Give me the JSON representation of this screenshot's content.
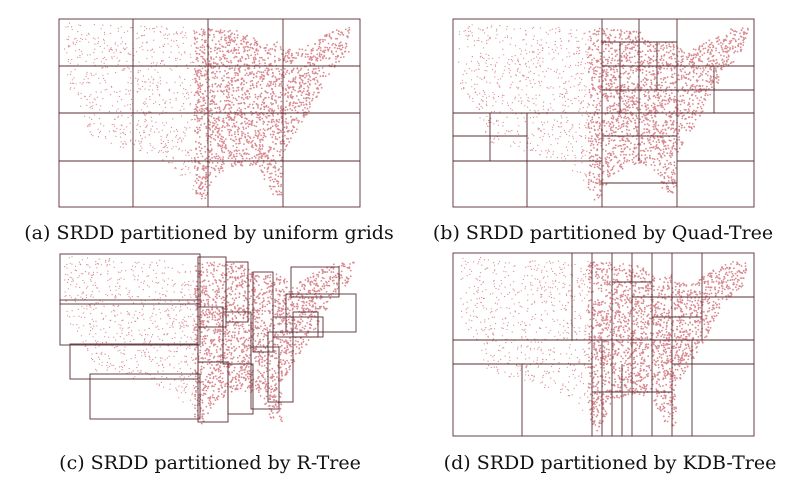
{
  "figure": {
    "panels": [
      {
        "id": "a",
        "caption": "(a) SRDD partitioned by uniform grids",
        "method": "uniform-grid"
      },
      {
        "id": "b",
        "caption": "(b) SRDD partitioned by Quad-Tree",
        "method": "quad-tree"
      },
      {
        "id": "c",
        "caption": "(c) SRDD partitioned by R-Tree",
        "method": "r-tree"
      },
      {
        "id": "d",
        "caption": "(d) SRDD partitioned by KDB-Tree",
        "method": "kdb-tree"
      }
    ],
    "colors": {
      "points": "#d98a90",
      "partition_lines": "#5a2d31"
    }
  }
}
